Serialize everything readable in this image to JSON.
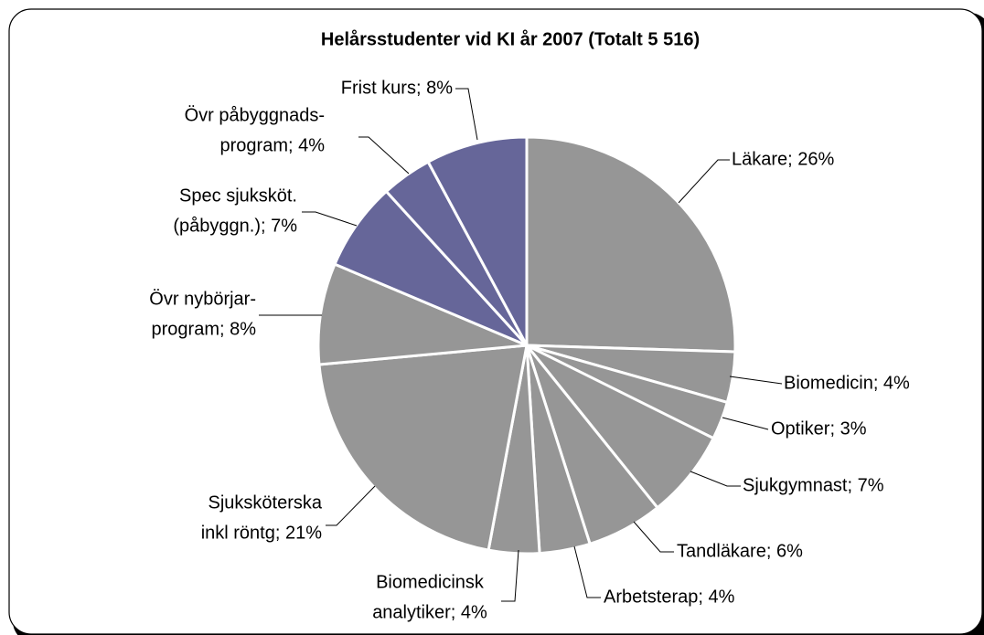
{
  "chart_data": {
    "type": "pie",
    "title": "Helårsstudenter vid KI år 2007 (Totalt 5 516)",
    "categories": [
      "Läkare",
      "Biomedicin",
      "Optiker",
      "Sjukgymnast",
      "Tandläkare",
      "Arbetsterap",
      "Biomedicinsk analytiker",
      "Sjuksköterska inkl röntg",
      "Övr nybörjarprogram",
      "Spec sjuksköt. (påbyggn.)",
      "Övr påbyggnadsprogram",
      "Frist kurs"
    ],
    "values": [
      26,
      4,
      3,
      7,
      6,
      4,
      4,
      21,
      8,
      7,
      4,
      8
    ],
    "value_labels": [
      [
        "Läkare; 26%"
      ],
      [
        "Biomedicin; 4%"
      ],
      [
        "Optiker; 3%"
      ],
      [
        "Sjukgymnast; 7%"
      ],
      [
        "Tandläkare; 6%"
      ],
      [
        "Arbetsterap; 4%"
      ],
      [
        "Biomedicinsk",
        "analytiker; 4%"
      ],
      [
        "Sjuksköterska",
        "inkl röntg; 21%"
      ],
      [
        "Övr nybörjar-",
        "program; 8%"
      ],
      [
        "Spec sjuksköt.",
        "(påbyggn.); 7%"
      ],
      [
        "Övr påbyggnads-",
        "program; 4%"
      ],
      [
        "Frist kurs; 8%"
      ]
    ],
    "colors": [
      "#969696",
      "#969696",
      "#969696",
      "#969696",
      "#969696",
      "#969696",
      "#969696",
      "#969696",
      "#969696",
      "#666699",
      "#666699",
      "#666699"
    ]
  }
}
